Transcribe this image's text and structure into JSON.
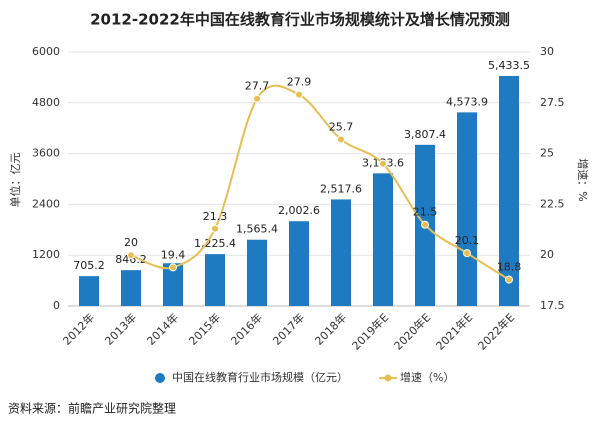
{
  "chart_data": {
    "type": "bar-line",
    "title": "2012-2022年中国在线教育行业市场规模统计及增长情况预测",
    "y_label": "单位：亿元",
    "y2_label": "增速：%",
    "categories": [
      "2012年",
      "2013年",
      "2014年",
      "2015年",
      "2016年",
      "2017年",
      "2018年",
      "2019年E",
      "2020年E",
      "2021年E",
      "2022年E"
    ],
    "series": [
      {
        "name": "中国在线教育行业市场规模（亿元）",
        "type": "bar",
        "color": "#1f7bc1",
        "values": [
          705.2,
          846.2,
          1010,
          1225.4,
          1565.4,
          2002.6,
          2517.6,
          3133.6,
          3807.4,
          4573.9,
          5433.5
        ],
        "value_labels": [
          "705.2",
          "846.2",
          null,
          "1,225.4",
          "1,565.4",
          "2,002.6",
          "2,517.6",
          "3,133.6",
          "3,807.4",
          "4,573.9",
          "5,433.5"
        ]
      },
      {
        "name": "增速（%）",
        "type": "line",
        "axis": "y2",
        "color": "#e6be52",
        "values": [
          null,
          20,
          19.4,
          21.3,
          27.7,
          27.9,
          25.7,
          24.5,
          21.5,
          20.1,
          18.8
        ],
        "value_labels": [
          null,
          "20",
          "19.4",
          "21.3",
          "27.7",
          "27.9",
          "25.7",
          null,
          "21.5",
          "20.1",
          "18.8"
        ]
      }
    ],
    "ylim": [
      0,
      6000
    ],
    "yticks": [
      0,
      1200,
      2400,
      3600,
      4800,
      6000
    ],
    "y2lim": [
      17.5,
      30
    ],
    "y2ticks": [
      17.5,
      20,
      22.5,
      25,
      27.5,
      30
    ],
    "grid": true,
    "legend": "bottom"
  },
  "source": "资料来源：前瞻产业研究院整理"
}
